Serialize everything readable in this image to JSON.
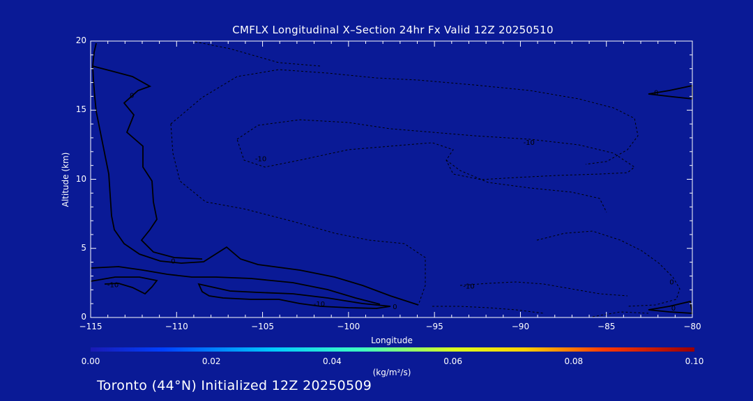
{
  "chart_data": {
    "type": "contour",
    "title": "CMFLX Longitudinal X–Section 24hr  Fx Valid 12Z 20250510",
    "xlabel": "Longitude",
    "ylabel": "Altitude (km)",
    "xlim": [
      -115,
      -80
    ],
    "ylim": [
      0,
      20
    ],
    "x_ticks": [
      -115,
      -110,
      -105,
      -100,
      -95,
      -90,
      -85,
      -80
    ],
    "y_ticks": [
      0,
      5,
      10,
      15,
      20
    ],
    "contour_labels": [
      {
        "text": "0",
        "x": -110.2,
        "y": 3.9
      },
      {
        "text": "0",
        "x": -112.6,
        "y": 15.9
      },
      {
        "text": "-10",
        "x": -105.1,
        "y": 11.3
      },
      {
        "text": "-10",
        "x": -89.5,
        "y": 12.5
      },
      {
        "text": "-10",
        "x": -93.0,
        "y": 2.1
      },
      {
        "text": "-10",
        "x": -101.7,
        "y": 0.8
      },
      {
        "text": "-10",
        "x": -113.7,
        "y": 2.2
      },
      {
        "text": "0",
        "x": -97.3,
        "y": 0.6
      },
      {
        "text": "0",
        "x": -81.2,
        "y": 2.4
      },
      {
        "text": "0",
        "x": -81.1,
        "y": 0.5
      },
      {
        "text": "0",
        "x": -82.1,
        "y": 16.1
      }
    ],
    "colorbar": {
      "range": [
        0.0,
        0.1
      ],
      "ticks": [
        "0.00",
        "0.02",
        "0.04",
        "0.06",
        "0.08",
        "0.10"
      ],
      "units": "(kg/m²/s)"
    },
    "grid": false
  },
  "footer": "Toronto (44°N) Initialized 12Z 20250509",
  "colors": {
    "background": "#0a1a96",
    "contour": "#000000",
    "axes": "#ffffff"
  }
}
